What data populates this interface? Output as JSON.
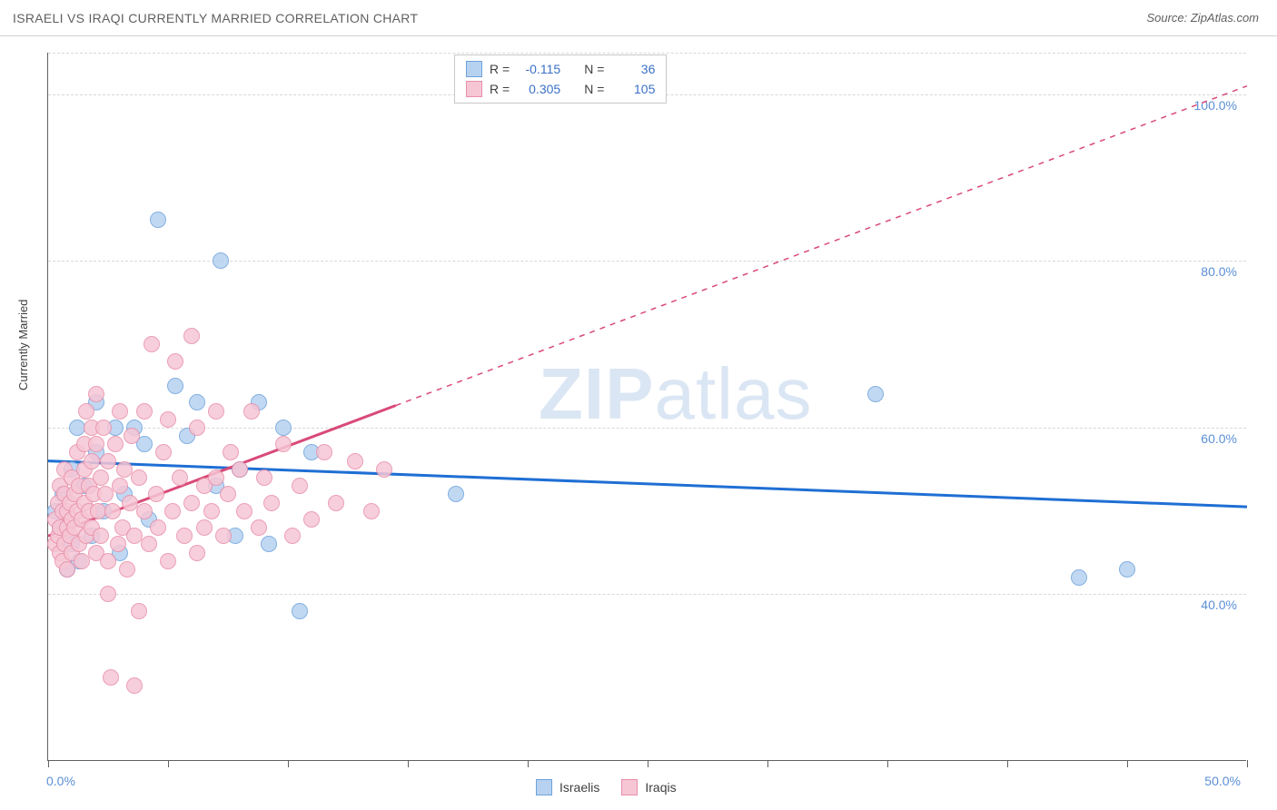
{
  "header": {
    "title": "ISRAELI VS IRAQI CURRENTLY MARRIED CORRELATION CHART",
    "source": "Source: ZipAtlas.com"
  },
  "watermark": {
    "bold": "ZIP",
    "rest": "atlas"
  },
  "chart": {
    "type": "scatter",
    "ylabel": "Currently Married",
    "xlim": [
      0,
      50
    ],
    "ylim": [
      20,
      105
    ],
    "x_ticks": [
      0,
      5,
      10,
      15,
      20,
      25,
      30,
      35,
      40,
      45,
      50
    ],
    "x_tick_labels_shown": {
      "0": "0.0%",
      "50": "50.0%"
    },
    "y_grid": [
      40,
      60,
      80,
      100
    ],
    "y_tick_labels": {
      "40": "40.0%",
      "60": "60.0%",
      "80": "80.0%",
      "100": "100.0%"
    },
    "background_color": "#ffffff",
    "grid_color": "#d8d8d8",
    "axis_color": "#606060",
    "series": [
      {
        "id": "israelis",
        "label": "Israelis",
        "r_value": "-0.115",
        "n_value": "36",
        "point_fill": "#b7d2f0",
        "point_stroke": "#6ea3dd",
        "point_radius": 9,
        "trend_color": "#1f6fd4",
        "trend_width": 3,
        "trend_dash": "none",
        "trend": {
          "x1": 0,
          "y1": 56.0,
          "x2": 50,
          "y2": 50.5,
          "solid_until_x": 50
        },
        "points": [
          {
            "x": 0.3,
            "y": 50
          },
          {
            "x": 0.5,
            "y": 48
          },
          {
            "x": 0.6,
            "y": 52
          },
          {
            "x": 0.8,
            "y": 43
          },
          {
            "x": 1.0,
            "y": 55
          },
          {
            "x": 1.0,
            "y": 46
          },
          {
            "x": 1.2,
            "y": 60
          },
          {
            "x": 1.3,
            "y": 44
          },
          {
            "x": 1.5,
            "y": 53
          },
          {
            "x": 1.8,
            "y": 47
          },
          {
            "x": 2.0,
            "y": 57
          },
          {
            "x": 2.0,
            "y": 63
          },
          {
            "x": 2.3,
            "y": 50
          },
          {
            "x": 2.8,
            "y": 60
          },
          {
            "x": 3.0,
            "y": 45
          },
          {
            "x": 3.2,
            "y": 52
          },
          {
            "x": 3.6,
            "y": 60
          },
          {
            "x": 4.0,
            "y": 58
          },
          {
            "x": 4.2,
            "y": 49
          },
          {
            "x": 4.6,
            "y": 85
          },
          {
            "x": 5.3,
            "y": 65
          },
          {
            "x": 5.8,
            "y": 59
          },
          {
            "x": 6.2,
            "y": 63
          },
          {
            "x": 7.0,
            "y": 53
          },
          {
            "x": 7.2,
            "y": 80
          },
          {
            "x": 7.8,
            "y": 47
          },
          {
            "x": 8.0,
            "y": 55
          },
          {
            "x": 8.8,
            "y": 63
          },
          {
            "x": 9.2,
            "y": 46
          },
          {
            "x": 9.8,
            "y": 60
          },
          {
            "x": 10.5,
            "y": 38
          },
          {
            "x": 11.0,
            "y": 57
          },
          {
            "x": 17.0,
            "y": 52
          },
          {
            "x": 34.5,
            "y": 64
          },
          {
            "x": 43.0,
            "y": 42
          },
          {
            "x": 45.0,
            "y": 43
          }
        ]
      },
      {
        "id": "iraqis",
        "label": "Iraqis",
        "r_value": "0.305",
        "n_value": "105",
        "point_fill": "#f6c6d5",
        "point_stroke": "#e88fa9",
        "point_radius": 9,
        "trend_color": "#d94a78",
        "trend_width": 3,
        "trend": {
          "x1": 0,
          "y1": 47.0,
          "x2": 50,
          "y2": 101.0,
          "solid_until_x": 14.5
        },
        "points": [
          {
            "x": 0.3,
            "y": 46
          },
          {
            "x": 0.3,
            "y": 49
          },
          {
            "x": 0.4,
            "y": 51
          },
          {
            "x": 0.4,
            "y": 47
          },
          {
            "x": 0.5,
            "y": 53
          },
          {
            "x": 0.5,
            "y": 45
          },
          {
            "x": 0.5,
            "y": 48
          },
          {
            "x": 0.6,
            "y": 50
          },
          {
            "x": 0.6,
            "y": 44
          },
          {
            "x": 0.7,
            "y": 52
          },
          {
            "x": 0.7,
            "y": 46
          },
          {
            "x": 0.7,
            "y": 55
          },
          {
            "x": 0.8,
            "y": 48
          },
          {
            "x": 0.8,
            "y": 50
          },
          {
            "x": 0.8,
            "y": 43
          },
          {
            "x": 0.9,
            "y": 51
          },
          {
            "x": 0.9,
            "y": 47
          },
          {
            "x": 1.0,
            "y": 54
          },
          {
            "x": 1.0,
            "y": 49
          },
          {
            "x": 1.0,
            "y": 45
          },
          {
            "x": 1.1,
            "y": 52
          },
          {
            "x": 1.1,
            "y": 48
          },
          {
            "x": 1.2,
            "y": 57
          },
          {
            "x": 1.2,
            "y": 50
          },
          {
            "x": 1.3,
            "y": 46
          },
          {
            "x": 1.3,
            "y": 53
          },
          {
            "x": 1.4,
            "y": 49
          },
          {
            "x": 1.4,
            "y": 44
          },
          {
            "x": 1.5,
            "y": 55
          },
          {
            "x": 1.5,
            "y": 51
          },
          {
            "x": 1.5,
            "y": 58
          },
          {
            "x": 1.6,
            "y": 47
          },
          {
            "x": 1.6,
            "y": 62
          },
          {
            "x": 1.7,
            "y": 50
          },
          {
            "x": 1.7,
            "y": 53
          },
          {
            "x": 1.8,
            "y": 56
          },
          {
            "x": 1.8,
            "y": 48
          },
          {
            "x": 1.8,
            "y": 60
          },
          {
            "x": 1.9,
            "y": 52
          },
          {
            "x": 2.0,
            "y": 45
          },
          {
            "x": 2.0,
            "y": 58
          },
          {
            "x": 2.0,
            "y": 64
          },
          {
            "x": 2.1,
            "y": 50
          },
          {
            "x": 2.2,
            "y": 54
          },
          {
            "x": 2.2,
            "y": 47
          },
          {
            "x": 2.3,
            "y": 60
          },
          {
            "x": 2.4,
            "y": 52
          },
          {
            "x": 2.5,
            "y": 56
          },
          {
            "x": 2.5,
            "y": 44
          },
          {
            "x": 2.5,
            "y": 40
          },
          {
            "x": 2.6,
            "y": 30
          },
          {
            "x": 2.7,
            "y": 50
          },
          {
            "x": 2.8,
            "y": 58
          },
          {
            "x": 2.9,
            "y": 46
          },
          {
            "x": 3.0,
            "y": 53
          },
          {
            "x": 3.0,
            "y": 62
          },
          {
            "x": 3.1,
            "y": 48
          },
          {
            "x": 3.2,
            "y": 55
          },
          {
            "x": 3.3,
            "y": 43
          },
          {
            "x": 3.4,
            "y": 51
          },
          {
            "x": 3.5,
            "y": 59
          },
          {
            "x": 3.6,
            "y": 47
          },
          {
            "x": 3.6,
            "y": 29
          },
          {
            "x": 3.8,
            "y": 54
          },
          {
            "x": 3.8,
            "y": 38
          },
          {
            "x": 4.0,
            "y": 50
          },
          {
            "x": 4.0,
            "y": 62
          },
          {
            "x": 4.2,
            "y": 46
          },
          {
            "x": 4.3,
            "y": 70
          },
          {
            "x": 4.5,
            "y": 52
          },
          {
            "x": 4.6,
            "y": 48
          },
          {
            "x": 4.8,
            "y": 57
          },
          {
            "x": 5.0,
            "y": 44
          },
          {
            "x": 5.0,
            "y": 61
          },
          {
            "x": 5.2,
            "y": 50
          },
          {
            "x": 5.3,
            "y": 68
          },
          {
            "x": 5.5,
            "y": 54
          },
          {
            "x": 5.7,
            "y": 47
          },
          {
            "x": 6.0,
            "y": 51
          },
          {
            "x": 6.0,
            "y": 71
          },
          {
            "x": 6.2,
            "y": 45
          },
          {
            "x": 6.2,
            "y": 60
          },
          {
            "x": 6.5,
            "y": 53
          },
          {
            "x": 6.5,
            "y": 48
          },
          {
            "x": 6.8,
            "y": 50
          },
          {
            "x": 7.0,
            "y": 54
          },
          {
            "x": 7.0,
            "y": 62
          },
          {
            "x": 7.3,
            "y": 47
          },
          {
            "x": 7.5,
            "y": 52
          },
          {
            "x": 7.6,
            "y": 57
          },
          {
            "x": 8.0,
            "y": 55
          },
          {
            "x": 8.2,
            "y": 50
          },
          {
            "x": 8.5,
            "y": 62
          },
          {
            "x": 8.8,
            "y": 48
          },
          {
            "x": 9.0,
            "y": 54
          },
          {
            "x": 9.3,
            "y": 51
          },
          {
            "x": 9.8,
            "y": 58
          },
          {
            "x": 10.2,
            "y": 47
          },
          {
            "x": 10.5,
            "y": 53
          },
          {
            "x": 11.0,
            "y": 49
          },
          {
            "x": 11.5,
            "y": 57
          },
          {
            "x": 12.0,
            "y": 51
          },
          {
            "x": 12.8,
            "y": 56
          },
          {
            "x": 13.5,
            "y": 50
          },
          {
            "x": 14.0,
            "y": 55
          }
        ]
      }
    ]
  },
  "legend_top": {
    "r_label": "R =",
    "n_label": "N ="
  },
  "legend_bottom_labels": [
    "Israelis",
    "Iraqis"
  ]
}
